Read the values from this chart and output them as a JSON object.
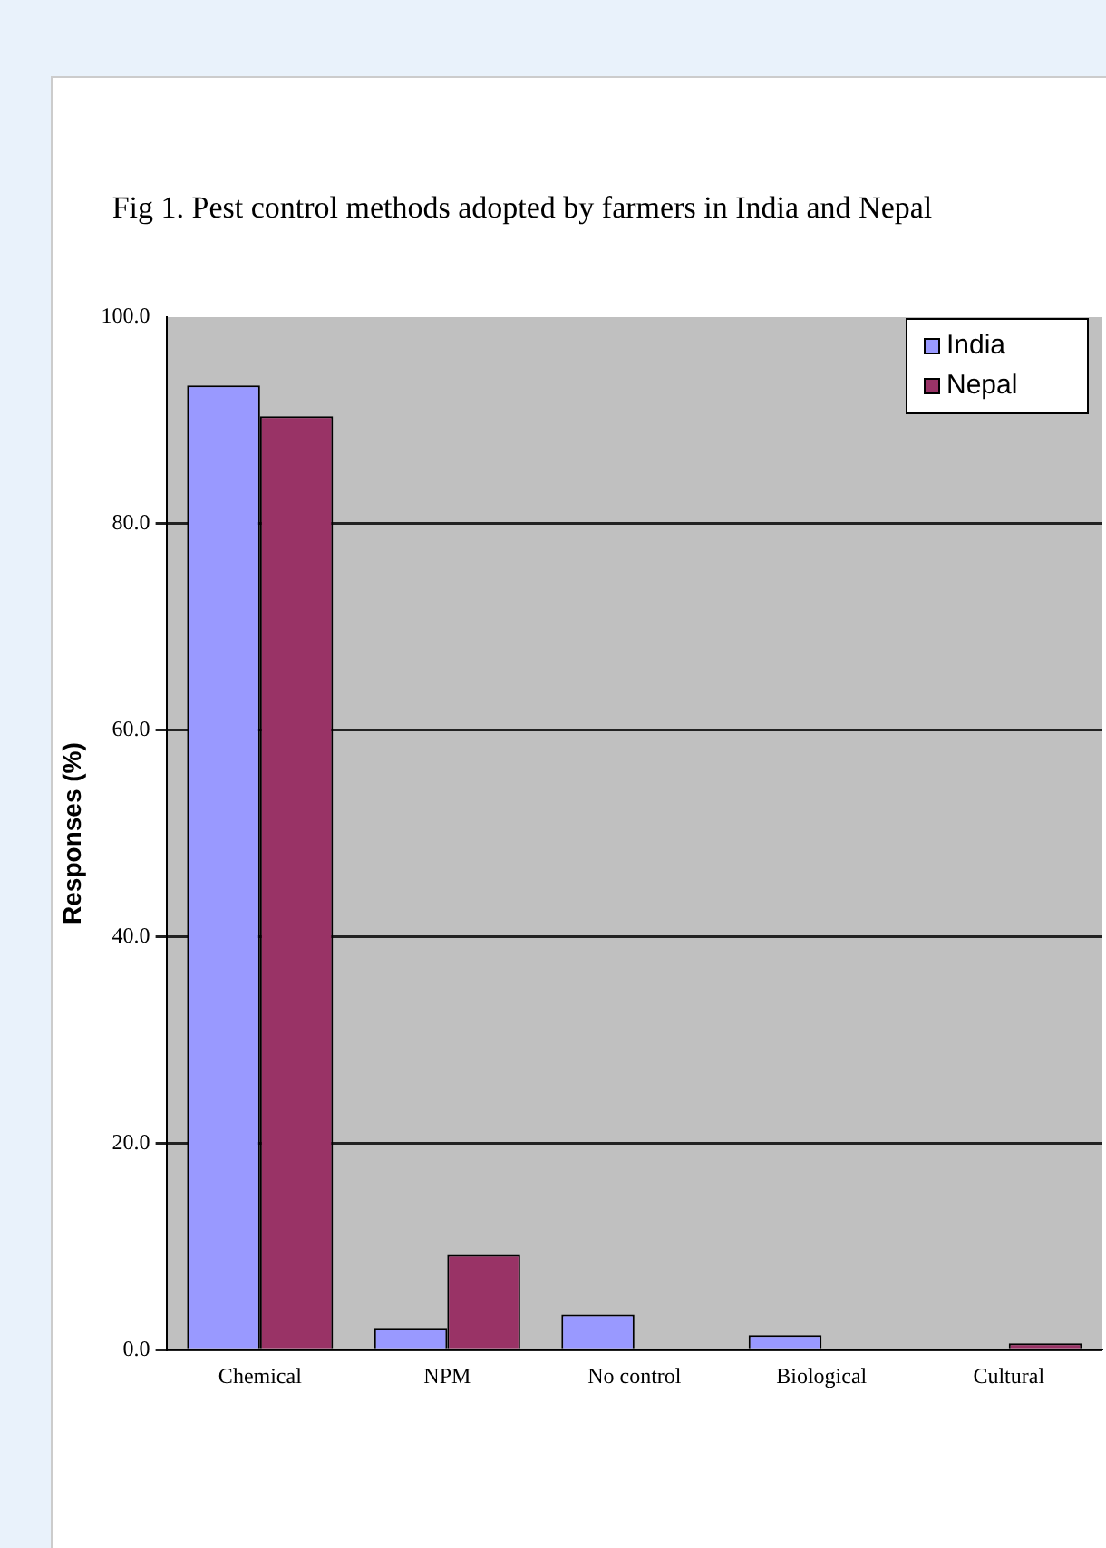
{
  "chart_data": {
    "type": "bar",
    "title": "Fig 1. Pest control methods adopted by farmers in India and Nepal",
    "ylabel": "Responses (%)",
    "categories": [
      "Chemical",
      "NPM",
      "No control",
      "Biological",
      "Cultural"
    ],
    "series": [
      {
        "name": "India",
        "color": "#9999ff",
        "values": [
          93.4,
          2.1,
          3.4,
          1.4,
          0
        ]
      },
      {
        "name": "Nepal",
        "color": "#993366",
        "values": [
          90.4,
          9.2,
          0,
          0,
          0.6
        ]
      }
    ],
    "ylim": [
      0,
      100
    ],
    "yticks": [
      {
        "value": 0,
        "label": "0.0"
      },
      {
        "value": 20,
        "label": "20.0"
      },
      {
        "value": 40,
        "label": "40.0"
      },
      {
        "value": 60,
        "label": "60.0"
      },
      {
        "value": 80,
        "label": "80.0"
      },
      {
        "value": 100,
        "label": "100.0"
      }
    ],
    "grid": "y",
    "legend": "top right"
  }
}
